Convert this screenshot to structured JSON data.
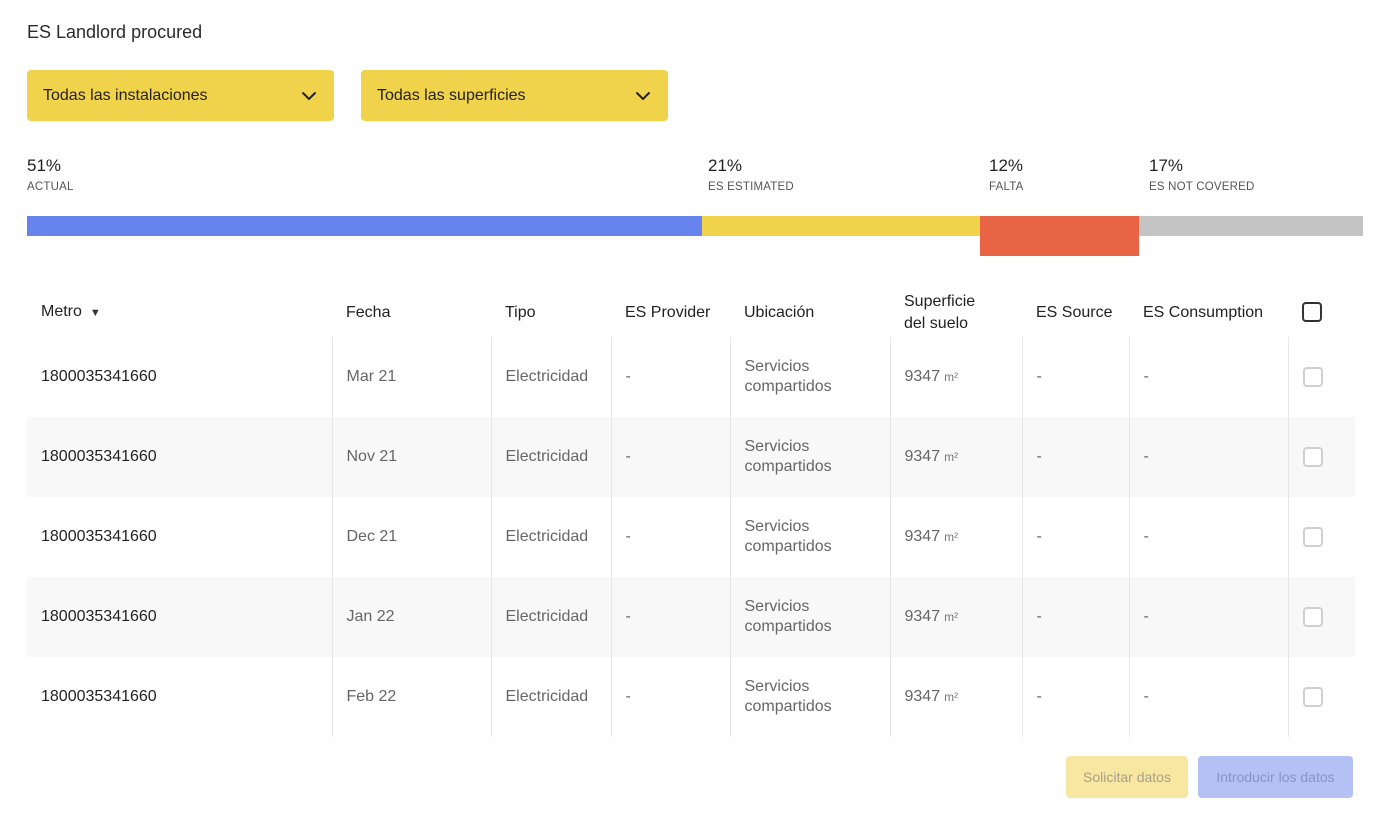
{
  "page": {
    "title": "ES Landlord procured"
  },
  "filters": [
    {
      "label": "Todas las instalaciones",
      "icon": "chevron-down-icon"
    },
    {
      "label": "Todas las superficies",
      "icon": "chevron-down-icon"
    }
  ],
  "coverage": {
    "actual": {
      "pct_label": "51%",
      "label": "ACTUAL",
      "value": 51,
      "color": "#6783ee"
    },
    "estimated": {
      "pct_label": "21%",
      "label": "ES ESTIMATED",
      "value": 21,
      "color": "#f1d24b"
    },
    "falta": {
      "pct_label": "12%",
      "label": "FALTA",
      "value": 12,
      "color": "#e86445"
    },
    "notcov": {
      "pct_label": "17%",
      "label": "ES NOT COVERED",
      "value": 17,
      "color": "#c4c4c4"
    }
  },
  "table": {
    "headers": {
      "metro": "Metro",
      "fecha": "Fecha",
      "tipo": "Tipo",
      "provider": "ES Provider",
      "ubicacion": "Ubicación",
      "superficie_1": "Superficie",
      "superficie_2": "del suelo",
      "source": "ES Source",
      "consumption": "ES Consumption"
    },
    "sort_icon": "caret-down-icon",
    "area_unit": "m²",
    "rows": [
      {
        "metro": "1800035341660",
        "fecha": "Mar 21",
        "tipo": "Electricidad",
        "provider": "-",
        "ubic_1": "Servicios",
        "ubic_2": "compartidos",
        "area": "9347",
        "source": "-",
        "consumption": "-"
      },
      {
        "metro": "1800035341660",
        "fecha": "Nov 21",
        "tipo": "Electricidad",
        "provider": "-",
        "ubic_1": "Servicios",
        "ubic_2": "compartidos",
        "area": "9347",
        "source": "-",
        "consumption": "-"
      },
      {
        "metro": "1800035341660",
        "fecha": "Dec 21",
        "tipo": "Electricidad",
        "provider": "-",
        "ubic_1": "Servicios",
        "ubic_2": "compartidos",
        "area": "9347",
        "source": "-",
        "consumption": "-"
      },
      {
        "metro": "1800035341660",
        "fecha": "Jan 22",
        "tipo": "Electricidad",
        "provider": "-",
        "ubic_1": "Servicios",
        "ubic_2": "compartidos",
        "area": "9347",
        "source": "-",
        "consumption": "-"
      },
      {
        "metro": "1800035341660",
        "fecha": "Feb 22",
        "tipo": "Electricidad",
        "provider": "-",
        "ubic_1": "Servicios",
        "ubic_2": "compartidos",
        "area": "9347",
        "source": "-",
        "consumption": "-"
      }
    ]
  },
  "actions": {
    "request_label": "Solicitar datos",
    "enter_label": "Introducir los datos"
  }
}
